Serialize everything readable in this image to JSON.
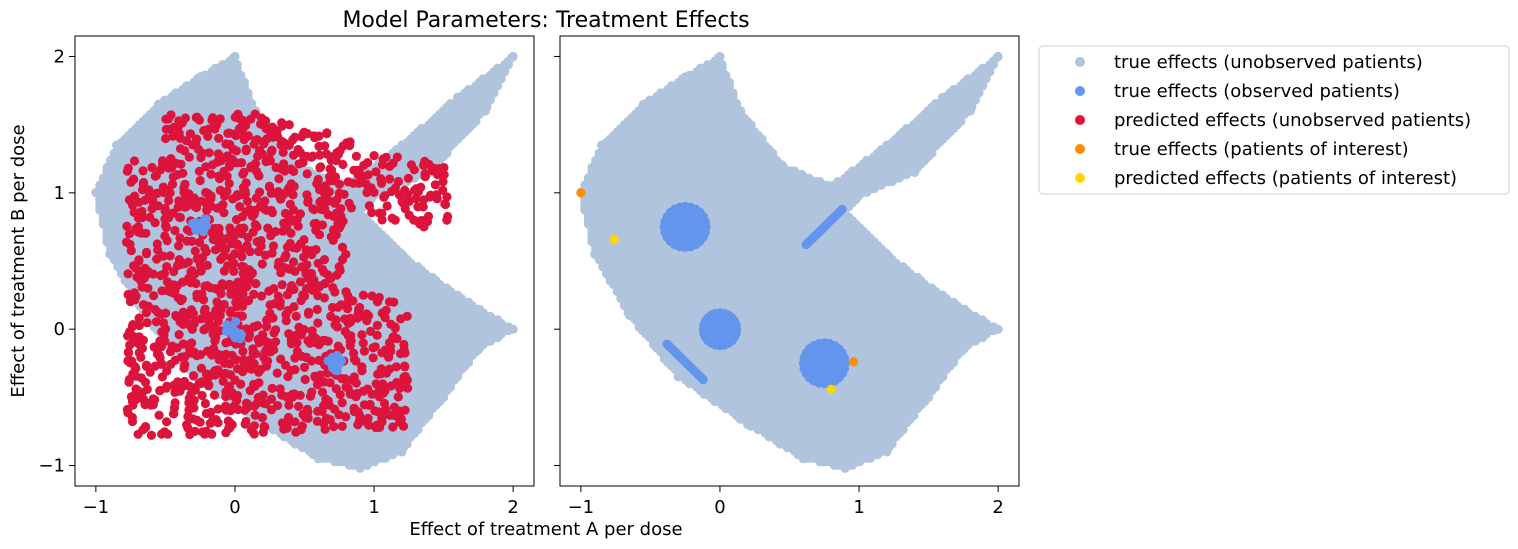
{
  "chart_data": {
    "type": "scatter",
    "title": "Model Parameters: Treatment Effects",
    "xlabel": "Effect of treatment A per dose",
    "ylabel": "Effect of treatment B per dose",
    "xlim": [
      -1.15,
      2.15
    ],
    "ylim": [
      -1.15,
      2.15
    ],
    "xticks": [
      -1,
      0,
      1,
      2
    ],
    "yticks": [
      -1,
      0,
      1,
      2
    ],
    "xtick_labels": [
      "−1",
      "0",
      "1",
      "2"
    ],
    "ytick_labels": [
      "−1",
      "0",
      "1",
      "2"
    ],
    "grid": false,
    "legend_position": "outside-right-top",
    "sharey": true,
    "series": [
      {
        "name": "true effects (unobserved patients)",
        "color": "#b0c4de"
      },
      {
        "name": "true effects (observed patients)",
        "color": "#6495ed"
      },
      {
        "name": "predicted effects (unobserved patients)",
        "color": "#dc143c"
      },
      {
        "name": "true effects (patients of interest)",
        "color": "#ff8c00"
      },
      {
        "name": "predicted effects (patients of interest)",
        "color": "#ffd700"
      }
    ],
    "panels": [
      {
        "name": "left",
        "series_shown": [
          0,
          1,
          2
        ],
        "true_unobserved_region": "curved band from (-1, 1) spanning to tips at (0, 2) and (2, 2), lower arm to (2, 0), bottom near (1, -1)",
        "observed_clusters": [
          {
            "shape": "blob",
            "center": [
              0,
              0
            ],
            "radius": 0.08
          },
          {
            "shape": "blob",
            "center": [
              -0.25,
              0.77
            ],
            "radius": 0.06
          },
          {
            "shape": "blob",
            "center": [
              0.72,
              -0.25
            ],
            "radius": 0.06
          }
        ],
        "predicted_unobserved_extent": {
          "x": [
            -0.78,
            1.55
          ],
          "y": [
            -0.78,
            1.58
          ]
        }
      },
      {
        "name": "right",
        "series_shown": [
          0,
          1,
          3,
          4
        ],
        "observed_clusters": [
          {
            "shape": "blob",
            "center": [
              -0.25,
              0.75
            ],
            "radius": 0.16
          },
          {
            "shape": "blob",
            "center": [
              0.0,
              0.0
            ],
            "radius": 0.13
          },
          {
            "shape": "blob",
            "center": [
              0.75,
              -0.25
            ],
            "radius": 0.16
          },
          {
            "shape": "line",
            "from": [
              0.62,
              0.62
            ],
            "to": [
              0.89,
              0.89
            ]
          },
          {
            "shape": "line",
            "from": [
              -0.38,
              -0.11
            ],
            "to": [
              -0.11,
              -0.38
            ]
          }
        ],
        "patients_of_interest_true": [
          [
            -1.0,
            1.0
          ],
          [
            0.96,
            -0.24
          ]
        ],
        "patients_of_interest_predicted": [
          [
            -0.76,
            0.66
          ],
          [
            0.8,
            -0.44
          ]
        ]
      }
    ]
  }
}
